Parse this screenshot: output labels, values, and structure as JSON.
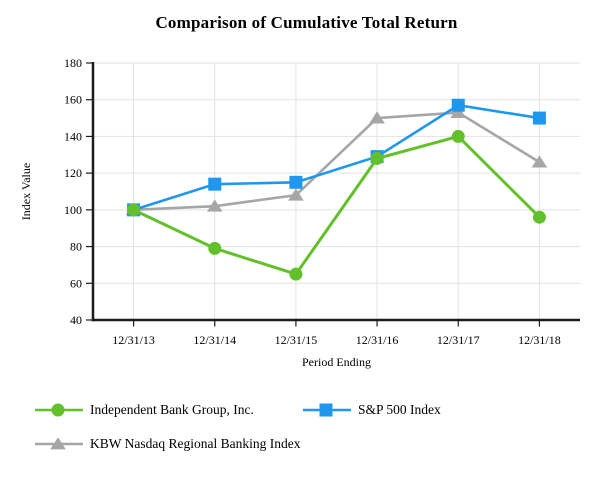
{
  "title": "Comparison of Cumulative Total Return",
  "colors": {
    "background": "#ffffff",
    "axis": "#1c1c1c",
    "grid": "#e3e3e3",
    "text": "#000000"
  },
  "chart_data": {
    "type": "line",
    "title": "Comparison of Cumulative Total Return",
    "categories": [
      "12/31/13",
      "12/31/14",
      "12/31/15",
      "12/31/16",
      "12/31/17",
      "12/31/18"
    ],
    "xlabel": "Period Ending",
    "ylabel": "Index Value",
    "ylim": [
      40,
      180
    ],
    "ytick_interval": 20,
    "grid": true,
    "legend_position": "bottom-left",
    "series": [
      {
        "name": "Independent Bank Group, Inc.",
        "marker": "circle",
        "color": "#62c02a",
        "values": [
          100,
          79,
          65,
          128,
          140,
          96
        ]
      },
      {
        "name": "S&P 500 Index",
        "marker": "square",
        "color": "#1f97ee",
        "values": [
          100,
          114,
          115,
          129,
          157,
          150
        ]
      },
      {
        "name": "KBW Nasdaq Regional Banking Index",
        "marker": "triangle",
        "color": "#a6a6a6",
        "values": [
          100,
          102,
          108,
          150,
          153,
          126
        ]
      }
    ]
  }
}
